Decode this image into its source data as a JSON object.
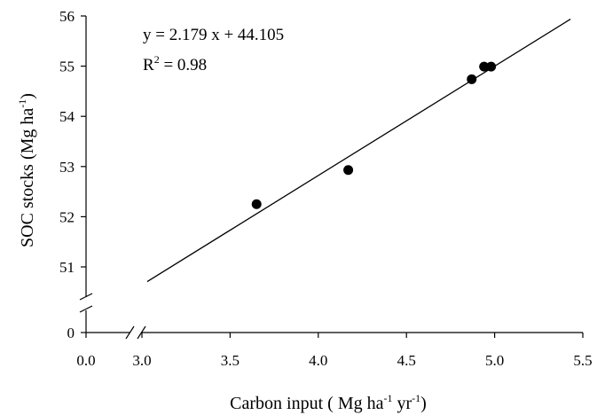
{
  "chart_data": {
    "type": "scatter",
    "xlabel_parts": [
      "Carbon input ( Mg ha",
      "-1",
      " yr",
      "-1",
      ")"
    ],
    "ylabel_parts": [
      "SOC stocks (Mg ha",
      "-1",
      ")"
    ],
    "x_ticks": [
      "0.0",
      "3.0",
      "3.5",
      "4.0",
      "4.5",
      "5.0",
      "5.5"
    ],
    "y_ticks": [
      "0",
      "51",
      "52",
      "53",
      "54",
      "55",
      "56"
    ],
    "x_range": [
      3.0,
      5.5
    ],
    "y_range": [
      51,
      56
    ],
    "axis_breaks": {
      "x": "between 0.0 and 3.0",
      "y": "between 0 and 51"
    },
    "points": [
      {
        "x": 3.65,
        "y": 52.25
      },
      {
        "x": 4.17,
        "y": 52.93
      },
      {
        "x": 4.87,
        "y": 54.74
      },
      {
        "x": 4.94,
        "y": 54.99
      },
      {
        "x": 4.98,
        "y": 54.99
      }
    ],
    "fit": {
      "slope": 2.179,
      "intercept": 44.105,
      "x_from": 3.03,
      "x_to": 5.43
    },
    "equation_text": "y = 2.179 x + 44.105",
    "r2_text": [
      "R",
      "2",
      " = 0.98"
    ],
    "grid": false,
    "legend": "none"
  }
}
